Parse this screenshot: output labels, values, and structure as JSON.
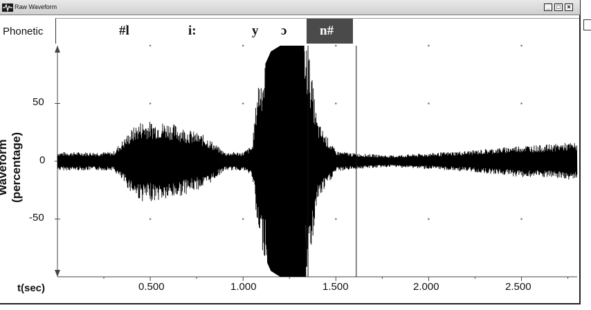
{
  "window": {
    "title": "Raw Waveform",
    "buttons": [
      "minimize",
      "maximize",
      "close"
    ]
  },
  "phonetic": {
    "label": "Phonetic",
    "segments": [
      "#l",
      "i:",
      "y",
      "ɔ",
      "n#"
    ],
    "selected_segment": "n#"
  },
  "chart_data": {
    "type": "line",
    "xlabel": "t(sec)",
    "ylabel": "Waveform (percentage)",
    "xlim": [
      0,
      2.8
    ],
    "ylim": [
      -100,
      100
    ],
    "xticks": [
      "0.500",
      "1.000",
      "1.500",
      "2.000",
      "2.500"
    ],
    "xtick_values": [
      0.5,
      1.0,
      1.5,
      2.0,
      2.5
    ],
    "yticks": [
      "50",
      "0",
      "-50"
    ],
    "ytick_values": [
      50,
      0,
      -50
    ],
    "grid": "dots",
    "cursor_lines_sec": [
      1.35,
      1.61
    ],
    "envelope": {
      "t": [
        0.0,
        0.3,
        0.4,
        0.45,
        0.6,
        0.8,
        0.9,
        1.0,
        1.05,
        1.08,
        1.15,
        1.2,
        1.25,
        1.35,
        1.4,
        1.45,
        1.5,
        1.6,
        1.8,
        2.0,
        2.2,
        2.4,
        2.5,
        2.6,
        2.75,
        2.8
      ],
      "amp": [
        8,
        8,
        28,
        35,
        34,
        22,
        8,
        8,
        14,
        70,
        95,
        100,
        100,
        100,
        35,
        22,
        9,
        7,
        5,
        7,
        9,
        12,
        14,
        14,
        16,
        16
      ]
    },
    "color": "#000000"
  }
}
